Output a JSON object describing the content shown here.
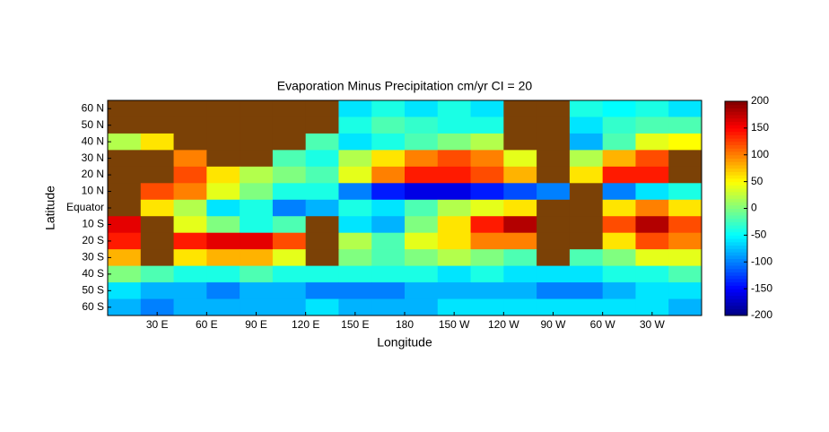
{
  "chart_data": {
    "type": "heatmap",
    "title": "Evaporation Minus Precipitation cm/yr CI = 20",
    "x_label": "Longitude",
    "y_label": "Latitude",
    "xlim": [
      0,
      360
    ],
    "ylim": [
      -65,
      65
    ],
    "xticks": [
      {
        "value": 30,
        "label": "30 E"
      },
      {
        "value": 60,
        "label": "60  E"
      },
      {
        "value": 90,
        "label": "90 E"
      },
      {
        "value": 120,
        "label": "120 E"
      },
      {
        "value": 150,
        "label": "150 E"
      },
      180,
      {
        "value": 210,
        "label": "150 W"
      },
      {
        "value": 240,
        "label": "120 W"
      },
      {
        "value": 270,
        "label": "90 W"
      },
      {
        "value": 300,
        "label": "60 W"
      },
      {
        "value": 330,
        "label": "30 W"
      }
    ],
    "yticks": [
      {
        "value": -60,
        "label": "60 S"
      },
      {
        "value": -50,
        "label": "50 S"
      },
      {
        "value": -40,
        "label": "40 S"
      },
      {
        "value": -30,
        "label": "30 S"
      },
      {
        "value": -20,
        "label": "20 S"
      },
      {
        "value": -10,
        "label": "10 S"
      },
      {
        "value": 0,
        "label": "Equator"
      },
      {
        "value": 10,
        "label": "10 N"
      },
      {
        "value": 20,
        "label": "20 N"
      },
      {
        "value": 30,
        "label": "30 N"
      },
      {
        "value": 40,
        "label": "40 N"
      },
      {
        "value": 50,
        "label": "50 N"
      },
      {
        "value": 60,
        "label": "60 N"
      }
    ],
    "clim": [
      -200,
      200
    ],
    "cticks": [
      -200,
      -150,
      -100,
      -50,
      0,
      50,
      100,
      150,
      200
    ],
    "colormap": "jet",
    "land_color": "#7b4106",
    "x": [
      10,
      30,
      50,
      70,
      90,
      110,
      130,
      150,
      170,
      190,
      210,
      230,
      250,
      270,
      290,
      310,
      330,
      350
    ],
    "y": [
      60,
      50,
      40,
      30,
      20,
      10,
      0,
      -10,
      -20,
      -30,
      -40,
      -50,
      -60
    ],
    "z": [
      [
        null,
        null,
        null,
        null,
        null,
        null,
        null,
        -60,
        -40,
        -60,
        -40,
        -60,
        null,
        null,
        -40,
        -50,
        -40,
        -60
      ],
      [
        null,
        null,
        null,
        null,
        null,
        null,
        null,
        -40,
        -20,
        -30,
        -40,
        -40,
        null,
        null,
        -60,
        -30,
        -20,
        -20
      ],
      [
        20,
        60,
        null,
        null,
        null,
        null,
        -20,
        -60,
        -40,
        -20,
        0,
        20,
        null,
        null,
        -80,
        -20,
        40,
        50
      ],
      [
        null,
        null,
        100,
        null,
        null,
        -20,
        -40,
        20,
        60,
        100,
        120,
        100,
        40,
        null,
        20,
        80,
        120,
        null
      ],
      [
        null,
        null,
        120,
        60,
        20,
        0,
        -20,
        40,
        100,
        140,
        140,
        120,
        80,
        null,
        60,
        140,
        140,
        null
      ],
      [
        null,
        120,
        100,
        40,
        0,
        -40,
        -40,
        -100,
        -140,
        -160,
        -160,
        -140,
        -120,
        -100,
        null,
        -100,
        -60,
        -40
      ],
      [
        null,
        60,
        20,
        -60,
        -40,
        -100,
        -80,
        -40,
        -60,
        -20,
        20,
        40,
        60,
        null,
        null,
        60,
        100,
        60
      ],
      [
        160,
        null,
        40,
        0,
        -40,
        -20,
        null,
        -60,
        -80,
        0,
        60,
        140,
        180,
        null,
        null,
        120,
        180,
        120
      ],
      [
        140,
        null,
        140,
        160,
        160,
        120,
        null,
        20,
        -20,
        40,
        60,
        100,
        100,
        null,
        null,
        60,
        120,
        100
      ],
      [
        80,
        null,
        60,
        80,
        80,
        40,
        null,
        0,
        -20,
        0,
        20,
        0,
        -20,
        null,
        -20,
        0,
        40,
        40
      ],
      [
        0,
        -20,
        -40,
        -40,
        -20,
        -40,
        -40,
        -40,
        -40,
        -40,
        -60,
        -40,
        -60,
        -60,
        -60,
        -40,
        -40,
        -20
      ],
      [
        -60,
        -80,
        -80,
        -100,
        -80,
        -80,
        -100,
        -100,
        -100,
        -80,
        -80,
        -80,
        -80,
        -100,
        -100,
        -80,
        -60,
        -60
      ],
      [
        -80,
        -100,
        -80,
        -80,
        -80,
        -80,
        -60,
        -80,
        -80,
        -80,
        -60,
        -60,
        -60,
        -60,
        -60,
        -60,
        -60,
        -80
      ]
    ]
  }
}
